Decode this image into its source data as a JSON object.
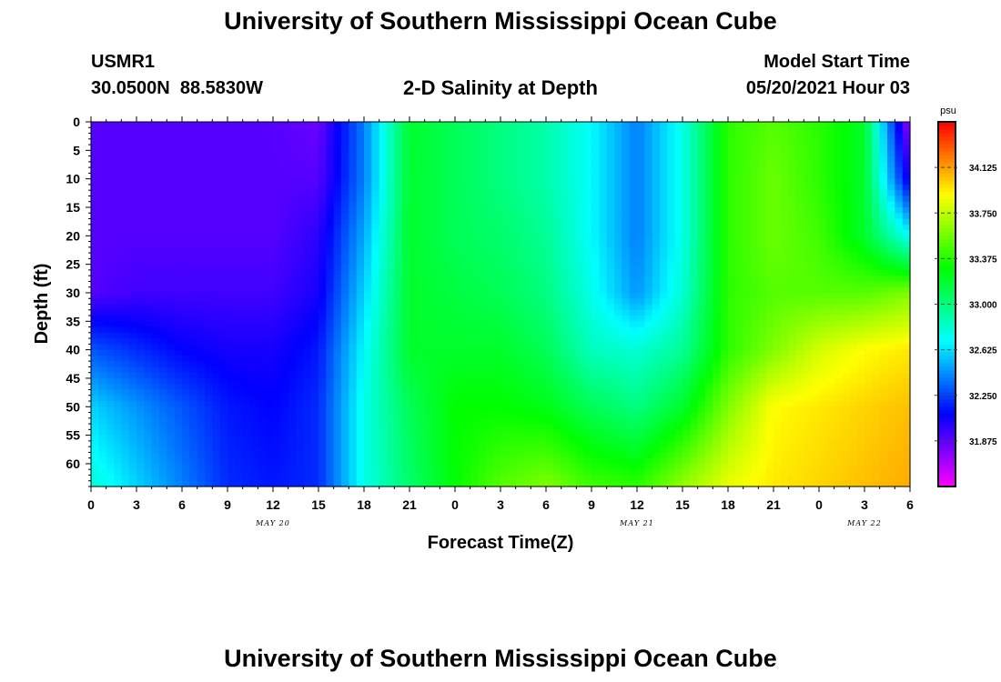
{
  "header": {
    "title": "University of Southern Mississippi Ocean Cube",
    "station_id": "USMR1",
    "coordinates": "30.0500N  88.5830W",
    "subtitle": "2-D Salinity at Depth",
    "model_start_label": "Model Start Time",
    "model_start_value": "05/20/2021 Hour 03"
  },
  "footer": {
    "title": "University of Southern Mississippi Ocean Cube"
  },
  "colorbar": {
    "unit": "psu",
    "ticks": [
      34.125,
      33.75,
      33.375,
      33.0,
      32.625,
      32.25,
      31.875
    ],
    "tick_labels": [
      "34.125",
      "33.750",
      "33.375",
      "33.000",
      "32.625",
      "32.250",
      "31.875"
    ],
    "range": [
      31.5,
      34.5
    ]
  },
  "chart_data": {
    "type": "heatmap",
    "title": "2-D Salinity at Depth",
    "xlabel": "Forecast Time(Z)",
    "ylabel": "Depth (ft)",
    "x_tick_labels": [
      "0",
      "3",
      "6",
      "9",
      "12",
      "15",
      "18",
      "21",
      "0",
      "3",
      "6",
      "9",
      "12",
      "15",
      "18",
      "21",
      "0",
      "3",
      "6"
    ],
    "x_range_hours": [
      0,
      54
    ],
    "date_labels": [
      {
        "label": "MAY 20",
        "hour": 12
      },
      {
        "label": "MAY 21",
        "hour": 36
      },
      {
        "label": "MAY 22",
        "hour": 51
      }
    ],
    "y_ticks": [
      0,
      5,
      10,
      15,
      20,
      25,
      30,
      35,
      40,
      45,
      50,
      55,
      60
    ],
    "y_range": [
      0,
      64
    ],
    "y_inverted": true,
    "z_unit": "psu",
    "z_range": [
      31.5,
      34.5
    ],
    "grid_hours": [
      0,
      3,
      6,
      9,
      12,
      15,
      18,
      21,
      24,
      27,
      30,
      33,
      36,
      39,
      42,
      45,
      48,
      51,
      54
    ],
    "grid_depths": [
      0,
      10,
      20,
      30,
      40,
      50,
      64
    ],
    "salinity_rows": [
      [
        31.9,
        31.9,
        31.9,
        31.9,
        31.9,
        31.85,
        32.4,
        33.2,
        33.1,
        33.0,
        32.9,
        32.7,
        32.4,
        32.75,
        33.4,
        33.5,
        33.4,
        33.2,
        31.7
      ],
      [
        31.9,
        31.9,
        31.9,
        31.9,
        31.9,
        31.9,
        32.4,
        33.2,
        33.1,
        33.0,
        32.9,
        32.7,
        32.4,
        32.75,
        33.4,
        33.55,
        33.4,
        33.2,
        32.0
      ],
      [
        31.9,
        31.9,
        31.9,
        31.9,
        31.9,
        32.0,
        32.5,
        33.2,
        33.1,
        33.05,
        32.95,
        32.7,
        32.4,
        32.75,
        33.4,
        33.55,
        33.45,
        33.2,
        32.7
      ],
      [
        31.9,
        31.95,
        31.95,
        31.95,
        31.95,
        32.05,
        32.6,
        33.2,
        33.15,
        33.1,
        33.0,
        32.75,
        32.45,
        32.8,
        33.4,
        33.5,
        33.5,
        33.5,
        33.6
      ],
      [
        32.3,
        32.2,
        32.1,
        32.05,
        32.05,
        32.15,
        32.7,
        33.2,
        33.2,
        33.2,
        33.1,
        32.85,
        32.8,
        32.95,
        33.4,
        33.6,
        33.8,
        33.9,
        33.95
      ],
      [
        32.6,
        32.45,
        32.3,
        32.15,
        32.1,
        32.2,
        32.75,
        33.1,
        33.3,
        33.3,
        33.25,
        33.1,
        33.0,
        33.2,
        33.6,
        33.9,
        33.95,
        34.0,
        34.05
      ],
      [
        32.8,
        32.6,
        32.4,
        32.2,
        32.15,
        32.2,
        32.75,
        33.05,
        33.3,
        33.5,
        33.6,
        33.45,
        33.4,
        33.65,
        33.85,
        33.95,
        34.0,
        34.05,
        34.1
      ]
    ]
  }
}
